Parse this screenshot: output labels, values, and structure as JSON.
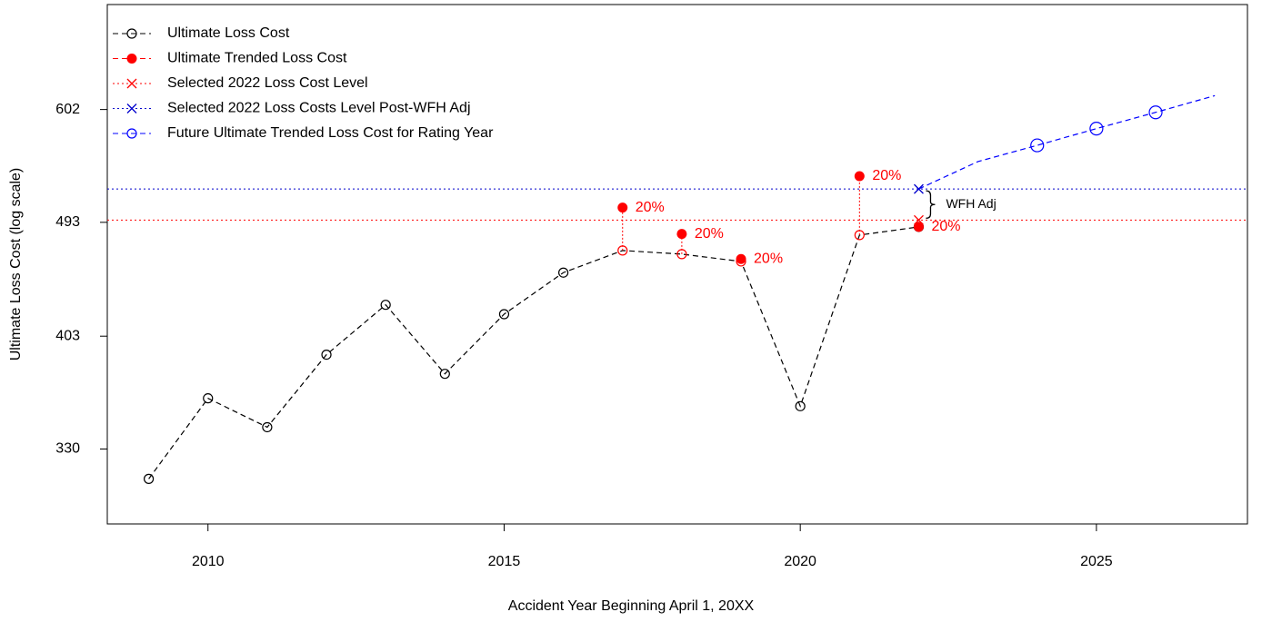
{
  "chart_data": {
    "type": "line",
    "xlabel": "Accident Year Beginning April 1, 20XX",
    "ylabel": "Ultimate Loss Cost (log scale)",
    "log_y": true,
    "xlim": [
      2008.3,
      2027.55
    ],
    "ylim": [
      289,
      725
    ],
    "xticks": [
      2010,
      2015,
      2020,
      2025
    ],
    "yticks": [
      330,
      403,
      493,
      602
    ],
    "legend": "top-left",
    "series": [
      {
        "name": "Ultimate Loss Cost",
        "color": "#000000",
        "style": "dashed",
        "marker": "open-circle",
        "x": [
          2009,
          2010,
          2011,
          2012,
          2013,
          2014,
          2015,
          2016,
          2017,
          2018,
          2019,
          2020,
          2021,
          2022
        ],
        "values": [
          313,
          361,
          343,
          390,
          426,
          377,
          419,
          451,
          469,
          466,
          460,
          356,
          482,
          489
        ],
        "marker_colors": [
          "#000000",
          "#000000",
          "#000000",
          "#000000",
          "#000000",
          "#000000",
          "#000000",
          "#000000",
          "#ff0000",
          "#ff0000",
          "#ff0000",
          "#000000",
          "#ff0000",
          "#000000"
        ]
      },
      {
        "name": "Ultimate Trended Loss Cost",
        "color": "#ff0000",
        "style": "dashed",
        "marker": "filled-circle",
        "connect": false,
        "x": [
          2017,
          2018,
          2019,
          2021,
          2022
        ],
        "values": [
          506,
          483,
          462,
          535,
          489
        ],
        "labels": [
          "20%",
          "20%",
          "20%",
          "20%",
          "20%"
        ]
      },
      {
        "name": "Selected 2022 Loss Cost Level",
        "color": "#ff0000",
        "style": "dotted",
        "marker": "x",
        "hline": true,
        "x": [
          2022
        ],
        "values": [
          495
        ]
      },
      {
        "name": "Selected 2022 Loss Costs Level Post-WFH Adj",
        "color": "#0000cc",
        "style": "dotted",
        "marker": "x",
        "hline": true,
        "x": [
          2022
        ],
        "values": [
          523
        ]
      },
      {
        "name": "Future Ultimate Trended Loss Cost for Rating Year",
        "color": "#0000ff",
        "style": "dashed",
        "marker": "open-circle-large",
        "x": [
          2022,
          2023,
          2024,
          2025,
          2026,
          2027
        ],
        "values": [
          523,
          549,
          565,
          582,
          599,
          617
        ],
        "markers": [
          false,
          false,
          true,
          true,
          true,
          false
        ]
      }
    ],
    "bracket_label": "WFH Adj"
  }
}
